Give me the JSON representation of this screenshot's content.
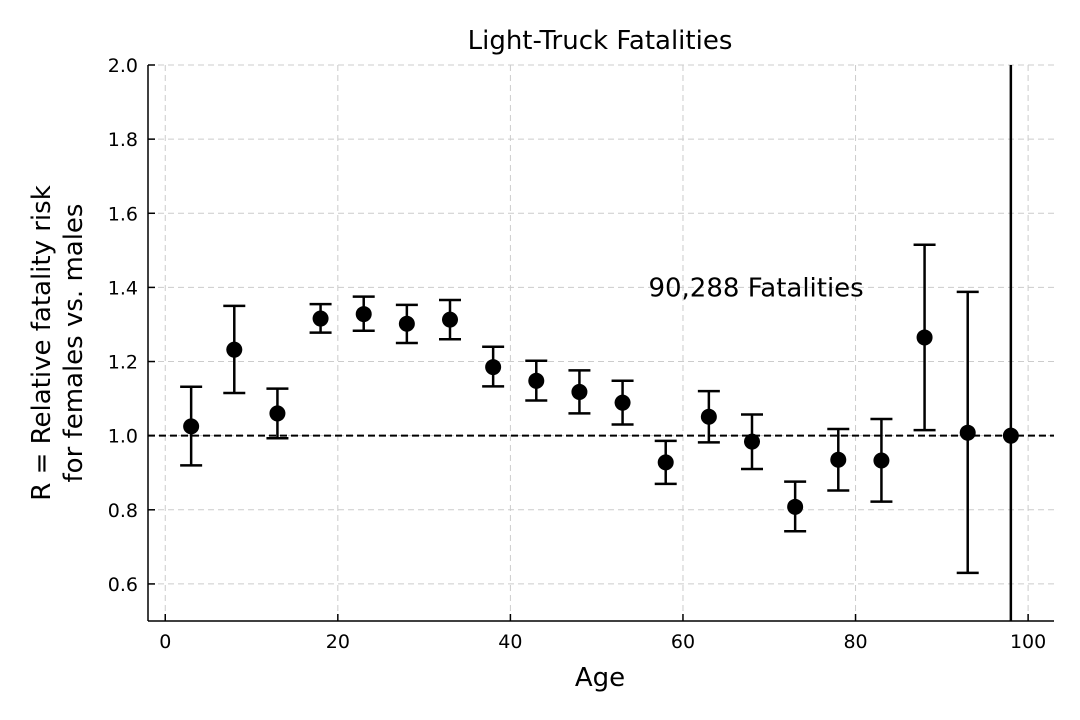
{
  "chart_data": {
    "type": "scatter",
    "title": "Light-Truck Fatalities",
    "xlabel": "Age",
    "ylabel_lines": [
      "R = Relative fatality risk",
      "for females vs. males"
    ],
    "xlim": [
      -2,
      103
    ],
    "ylim": [
      0.5,
      2.0
    ],
    "xticks": [
      0,
      20,
      40,
      60,
      80,
      100
    ],
    "xtick_labels": [
      "0",
      "20",
      "40",
      "60",
      "80",
      "100"
    ],
    "yticks": [
      0.6,
      0.8,
      1.0,
      1.2,
      1.4,
      1.6,
      1.8,
      2.0
    ],
    "ytick_labels": [
      "0.6",
      "0.8",
      "1.0",
      "1.2",
      "1.4",
      "1.6",
      "1.8",
      "2.0"
    ],
    "grid": true,
    "reference_line_y": 1.0,
    "annotation": {
      "text": "90,288 Fatalities",
      "x": 56,
      "y": 1.4
    },
    "points": [
      {
        "x": 3,
        "y": 1.025,
        "low": 0.92,
        "high": 1.132
      },
      {
        "x": 8,
        "y": 1.232,
        "low": 1.115,
        "high": 1.35
      },
      {
        "x": 13,
        "y": 1.06,
        "low": 0.993,
        "high": 1.127
      },
      {
        "x": 18,
        "y": 1.316,
        "low": 1.278,
        "high": 1.355
      },
      {
        "x": 23,
        "y": 1.328,
        "low": 1.283,
        "high": 1.375
      },
      {
        "x": 28,
        "y": 1.302,
        "low": 1.25,
        "high": 1.353
      },
      {
        "x": 33,
        "y": 1.313,
        "low": 1.26,
        "high": 1.366
      },
      {
        "x": 38,
        "y": 1.185,
        "low": 1.133,
        "high": 1.24
      },
      {
        "x": 43,
        "y": 1.148,
        "low": 1.095,
        "high": 1.202
      },
      {
        "x": 48,
        "y": 1.118,
        "low": 1.06,
        "high": 1.176
      },
      {
        "x": 53,
        "y": 1.089,
        "low": 1.03,
        "high": 1.148
      },
      {
        "x": 58,
        "y": 0.928,
        "low": 0.87,
        "high": 0.986
      },
      {
        "x": 63,
        "y": 1.051,
        "low": 0.982,
        "high": 1.12
      },
      {
        "x": 68,
        "y": 0.984,
        "low": 0.91,
        "high": 1.057
      },
      {
        "x": 73,
        "y": 0.808,
        "low": 0.742,
        "high": 0.876
      },
      {
        "x": 78,
        "y": 0.935,
        "low": 0.852,
        "high": 1.018
      },
      {
        "x": 83,
        "y": 0.933,
        "low": 0.822,
        "high": 1.045
      },
      {
        "x": 88,
        "y": 1.265,
        "low": 1.015,
        "high": 1.515
      },
      {
        "x": 93,
        "y": 1.008,
        "low": 0.63,
        "high": 1.388
      },
      {
        "x": 98,
        "y": 1.0,
        "low": 0.5,
        "high": 2.0,
        "capped": false
      }
    ]
  }
}
